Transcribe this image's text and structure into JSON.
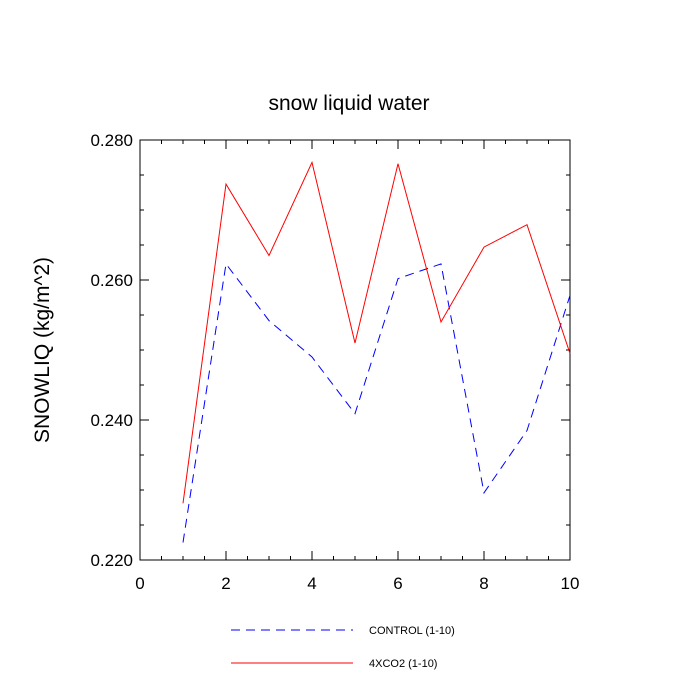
{
  "chart_data": {
    "type": "line",
    "title": "snow liquid water",
    "xlabel": "",
    "ylabel": "SNOWLIQ  (kg/m^2)",
    "xlim": [
      0,
      10
    ],
    "ylim": [
      0.22,
      0.28
    ],
    "x_ticks": [
      0,
      2,
      4,
      6,
      8,
      10
    ],
    "y_ticks": [
      0.22,
      0.24,
      0.26,
      0.28
    ],
    "x_tick_labels": [
      "0",
      "2",
      "4",
      "6",
      "8",
      "10"
    ],
    "y_tick_labels": [
      "0.220",
      "0.240",
      "0.260",
      "0.280"
    ],
    "grid": false,
    "legend_position": "bottom",
    "x": [
      1,
      2,
      3,
      4,
      5,
      6,
      7,
      8,
      9,
      10
    ],
    "series": [
      {
        "name": "CONTROL (1-10)",
        "color": "#0000ff",
        "style": "dashed",
        "values": [
          0.2225,
          0.2623,
          0.2542,
          0.249,
          0.2409,
          0.2602,
          0.2623,
          0.2296,
          0.2385,
          0.2578
        ]
      },
      {
        "name": "4XCO2 (1-10)",
        "color": "#ff0000",
        "style": "solid",
        "values": [
          0.2281,
          0.2737,
          0.2635,
          0.2768,
          0.251,
          0.2766,
          0.254,
          0.2647,
          0.2679,
          0.2495
        ]
      }
    ]
  }
}
